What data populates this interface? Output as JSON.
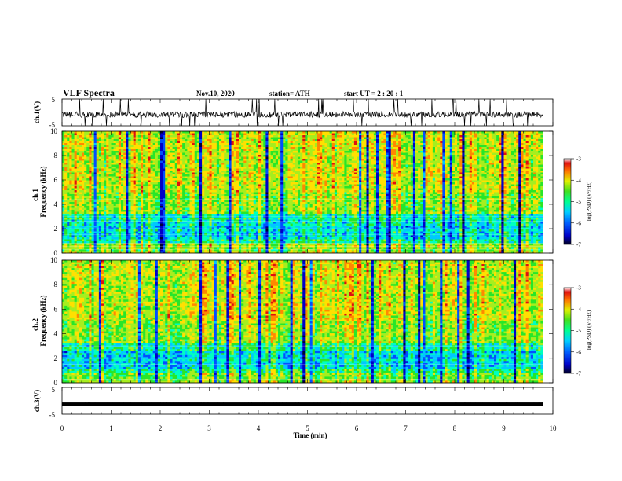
{
  "header": {
    "title": "VLF Spectra",
    "date": "Nov.10, 2020",
    "station": "station= ATH",
    "start_ut": "start  UT =   2 : 20 : 1"
  },
  "colorbar": {
    "label": "log(PSD) (V²/Hz)",
    "ticks": [
      "-3",
      "-4",
      "-5",
      "-6",
      "-7"
    ]
  },
  "chart_data": [
    {
      "type": "line",
      "panel": "ch1-waveform",
      "ylabel": "ch.1(V)",
      "ylim": [
        -5,
        5
      ],
      "y_ticks": [
        "5",
        "-5"
      ],
      "xlim": [
        0,
        10
      ],
      "description_values": {
        "baseline_V": -0.8,
        "peak_amplitude_V": 5
      }
    },
    {
      "type": "heatmap",
      "panel": "ch1-spectrogram",
      "ylabel": "ch.1 Frequency (kHz)",
      "ylim": [
        0,
        10
      ],
      "y_ticks": [
        "0",
        "2",
        "4",
        "6",
        "8",
        "10"
      ],
      "xlim": [
        0,
        9.8
      ],
      "z_range": [
        -7,
        -3
      ]
    },
    {
      "type": "heatmap",
      "panel": "ch2-spectrogram",
      "ylabel": "ch.2 Frequency (kHz)",
      "ylim": [
        0,
        10
      ],
      "y_ticks": [
        "0",
        "2",
        "4",
        "6",
        "8",
        "10"
      ],
      "xlim": [
        0,
        9.8
      ],
      "z_range": [
        -7,
        -3
      ]
    },
    {
      "type": "line",
      "panel": "ch3-waveform",
      "ylabel": "ch.3(V)",
      "ylim": [
        -5,
        5
      ],
      "y_ticks": [
        "5",
        "-5"
      ],
      "xlim": [
        0,
        10
      ],
      "description_values": {
        "baseline_V": -1.2
      }
    }
  ],
  "x_axis": {
    "label": "Time  (min)",
    "ticks": [
      "0",
      "1",
      "2",
      "3",
      "4",
      "5",
      "6",
      "7",
      "8",
      "9",
      "10"
    ]
  },
  "colors": {
    "colormap": [
      "#00003a",
      "#0000c8",
      "#0050ff",
      "#00c8ff",
      "#00ffc0",
      "#28e628",
      "#a6ee1e",
      "#ffe000",
      "#ff8800",
      "#dd1010",
      "#ffffff"
    ]
  }
}
